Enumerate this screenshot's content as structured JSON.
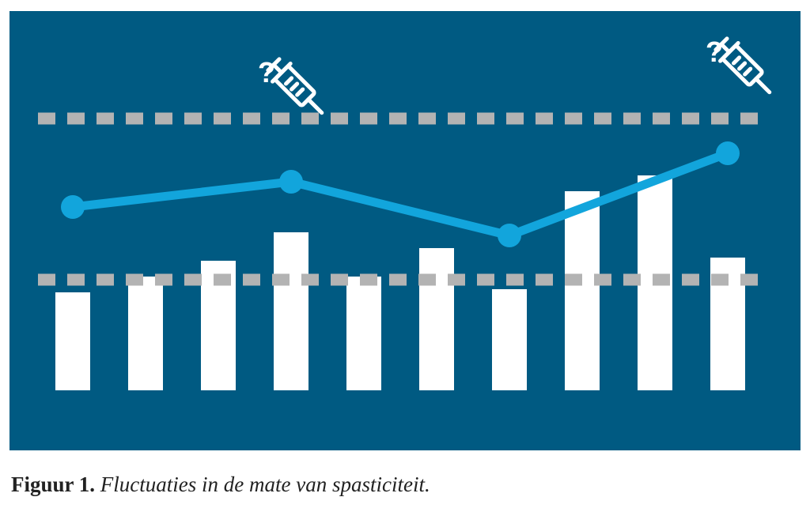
{
  "chart_data": {
    "type": "bar_line",
    "categories": [
      null,
      null,
      null,
      null,
      null,
      null,
      null,
      null,
      null,
      null
    ],
    "ylim": [
      0,
      100
    ],
    "series": [
      {
        "type": "bar",
        "color": "#ffffff",
        "values": [
          31,
          36,
          41,
          50,
          36,
          45,
          32,
          63,
          68,
          42
        ]
      },
      {
        "type": "line",
        "color": "#12a5dc",
        "x": [
          0,
          3,
          6,
          9
        ],
        "values": [
          58,
          66,
          49,
          75
        ]
      }
    ],
    "reference_lines": [
      86,
      35
    ],
    "reference_color": "#b3b3b3",
    "background": "#005a82"
  },
  "caption": {
    "label": "Figuur 1.",
    "text": "Fluctuaties in de mate van spasticiteit."
  }
}
